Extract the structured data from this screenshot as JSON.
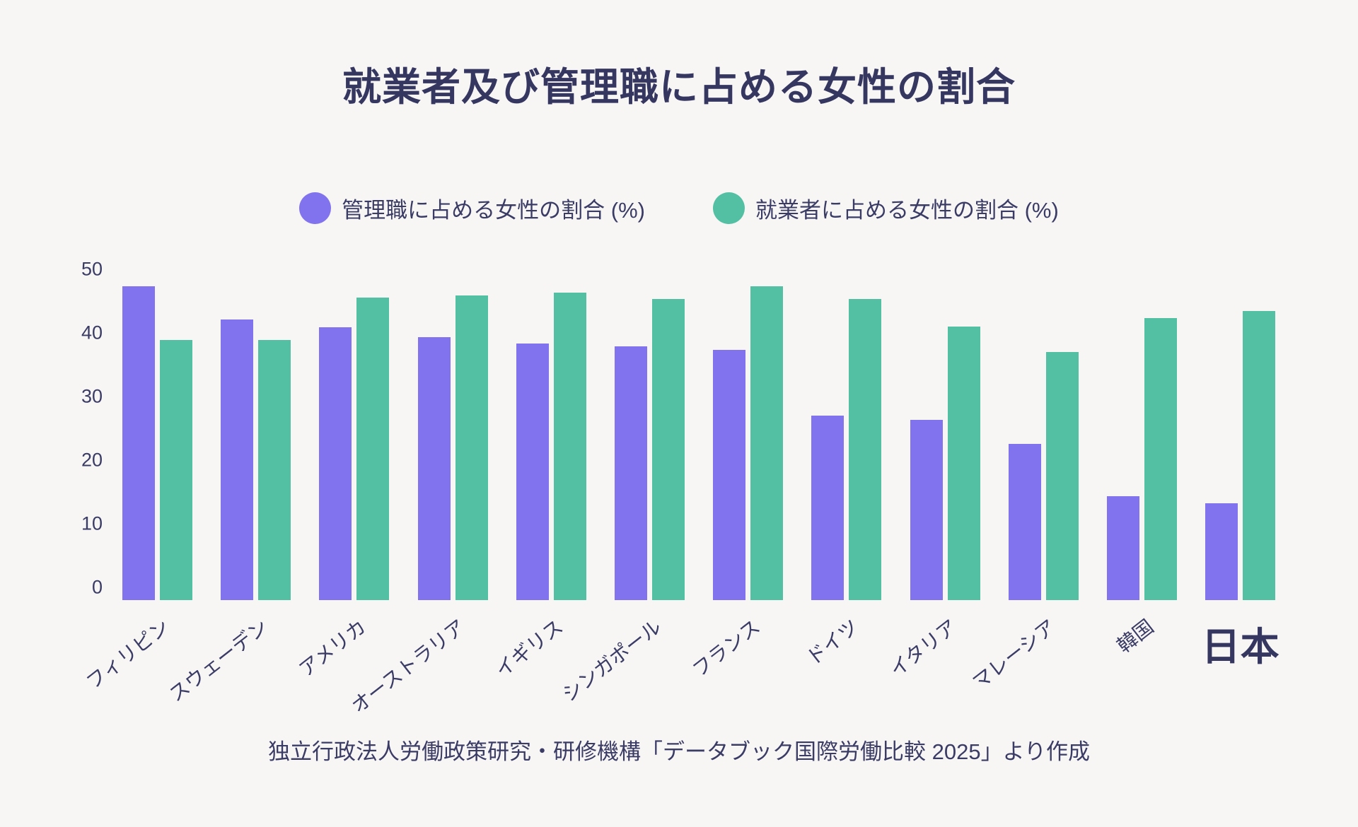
{
  "page": {
    "background": "#f7f6f4",
    "text_color": "#3b3c66",
    "title_color": "#363760"
  },
  "title": "就業者及び管理職に占める女性の割合",
  "legend": [
    {
      "label": "管理職に占める女性の割合 (%)",
      "color": "#8173ee"
    },
    {
      "label": "就業者に占める女性の割合 (%)",
      "color": "#53c0a4"
    }
  ],
  "footer": "独立行政法人労働政策研究・研修機構「データブック国際労働比較 2025」より作成",
  "chart_data": {
    "type": "bar",
    "title": "就業者及び管理職に占める女性の割合",
    "categories": [
      "フィリピン",
      "スウェーデン",
      "アメリカ",
      "オーストラリア",
      "イギリス",
      "シンガポール",
      "フランス",
      "ドイツ",
      "イタリア",
      "マレーシア",
      "韓国",
      "日本"
    ],
    "series": [
      {
        "name": "管理職に占める女性の割合 (%)",
        "color": "#8173ee",
        "values": [
          47.4,
          42.2,
          41.0,
          39.4,
          38.4,
          38.0,
          37.4,
          27.1,
          26.5,
          22.7,
          14.5,
          13.3
        ]
      },
      {
        "name": "就業者に占める女性の割合 (%)",
        "color": "#53c0a4",
        "values": [
          39.0,
          39.0,
          45.7,
          46.0,
          46.5,
          45.4,
          47.4,
          45.4,
          41.1,
          37.1,
          42.5,
          43.6
        ]
      }
    ],
    "xlabel": "",
    "ylabel": "",
    "y_ticks": [
      0,
      10,
      20,
      30,
      40,
      50
    ],
    "ylim": [
      0,
      50
    ],
    "grid": false,
    "legend_position": "top",
    "highlight_category": "日本",
    "x_tick_rotation_deg": -38
  }
}
